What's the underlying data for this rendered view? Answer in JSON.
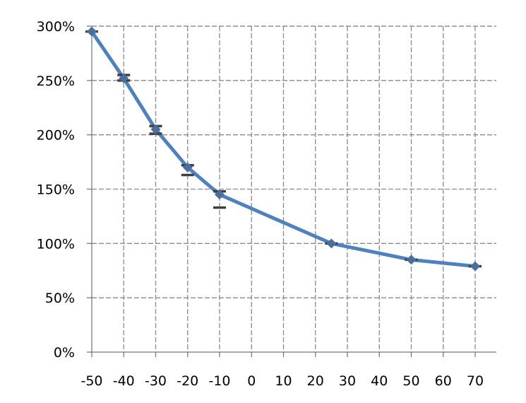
{
  "chart_data": {
    "type": "line",
    "title": "",
    "xlabel": "",
    "ylabel": "",
    "xlim": [
      -50,
      70
    ],
    "ylim": [
      0,
      300
    ],
    "x_ticks": [
      -50,
      -40,
      -30,
      -20,
      -10,
      0,
      10,
      20,
      30,
      40,
      50,
      60,
      70
    ],
    "x_tick_labels": [
      "-50",
      "-40",
      "-30",
      "-20",
      "-10",
      "0",
      "10",
      "20",
      "30",
      "40",
      "50",
      "60",
      "70"
    ],
    "y_ticks": [
      0,
      50,
      100,
      150,
      200,
      250,
      300
    ],
    "y_tick_labels": [
      "0%",
      "50%",
      "100%",
      "150%",
      "200%",
      "250%",
      "300%"
    ],
    "grid": true,
    "legend": "none",
    "series": [
      {
        "x": [
          -50,
          -40,
          -30,
          -20,
          -10,
          25,
          50,
          70
        ],
        "values": [
          295,
          252,
          205,
          170,
          145,
          100,
          85,
          79
        ],
        "error_bars": [
          {
            "x": -50,
            "low": 295,
            "high": 295
          },
          {
            "x": -40,
            "low": 250,
            "high": 255
          },
          {
            "x": -30,
            "low": 201,
            "high": 208
          },
          {
            "x": -20,
            "low": 163,
            "high": 172
          },
          {
            "x": -10,
            "low": 133,
            "high": 148
          },
          {
            "x": 25,
            "low": 100,
            "high": 100
          },
          {
            "x": 50,
            "low": 85,
            "high": 85
          },
          {
            "x": 70,
            "low": 79,
            "high": 79
          }
        ],
        "color": "#4f81bd"
      }
    ],
    "marker_color": "#4a6f9c",
    "error_bar_color": "#404040"
  }
}
